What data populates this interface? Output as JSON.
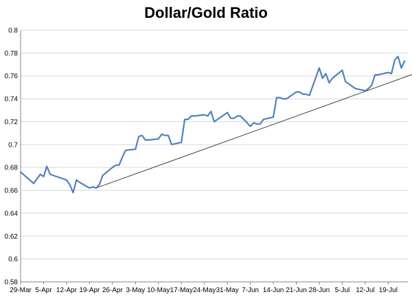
{
  "colors": {
    "series": "#4F81BD",
    "trend": "#404040",
    "grid": "#D9D9D9",
    "axis": "#868686"
  },
  "chart_data": {
    "type": "line",
    "title": "Dollar/Gold Ratio",
    "xlabel": "",
    "ylabel": "",
    "ylim": [
      0.58,
      0.8
    ],
    "y_ticks": [
      0.58,
      0.6,
      0.62,
      0.64,
      0.66,
      0.68,
      0.7,
      0.72,
      0.74,
      0.76,
      0.78,
      0.8
    ],
    "y_tick_labels": [
      "0.58",
      "0.6",
      "0.62",
      "0.64",
      "0.66",
      "0.68",
      "0.7",
      "0.72",
      "0.74",
      "0.76",
      "0.78",
      "0.8"
    ],
    "x_tick_labels": [
      "29-Mar",
      "5-Apr",
      "12-Apr",
      "19-Apr",
      "26-Apr",
      "3-May",
      "10-May",
      "17-May",
      "24-May",
      "31-May",
      "7-Jun",
      "14-Jun",
      "21-Jun",
      "28-Jun",
      "5-Jul",
      "12-Jul",
      "19-Jul"
    ],
    "x_day_range": [
      0,
      118
    ],
    "grid": "horizontal",
    "legend": "none",
    "series": [
      {
        "x_days": [
          0,
          4,
          6,
          7,
          8,
          9,
          10,
          14,
          15,
          16,
          17,
          18,
          21,
          22,
          23,
          24,
          25,
          28,
          29,
          30,
          31,
          32,
          35,
          36,
          37,
          38,
          39,
          42,
          43,
          44,
          45,
          46,
          49,
          50,
          51,
          52,
          53,
          56,
          57,
          58,
          59,
          60,
          63,
          64,
          65,
          66,
          67,
          70,
          71,
          72,
          73,
          74,
          77,
          78,
          79,
          80,
          81,
          84,
          85,
          86,
          87,
          88,
          91,
          92,
          93,
          94,
          95,
          98,
          99,
          100,
          101,
          102,
          105,
          106,
          107,
          108,
          109,
          112,
          113,
          114,
          115,
          116,
          117
        ],
        "values": [
          0.676,
          0.666,
          0.674,
          0.672,
          0.681,
          0.674,
          0.673,
          0.669,
          0.665,
          0.658,
          0.669,
          0.667,
          0.662,
          0.663,
          0.662,
          0.665,
          0.673,
          0.68,
          0.682,
          0.682,
          0.689,
          0.695,
          0.696,
          0.707,
          0.708,
          0.704,
          0.704,
          0.705,
          0.709,
          0.708,
          0.708,
          0.7,
          0.702,
          0.722,
          0.722,
          0.725,
          0.725,
          0.726,
          0.725,
          0.729,
          0.72,
          0.722,
          0.728,
          0.723,
          0.723,
          0.725,
          0.725,
          0.716,
          0.719,
          0.718,
          0.718,
          0.722,
          0.724,
          0.741,
          0.741,
          0.74,
          0.74,
          0.746,
          0.746,
          0.744,
          0.744,
          0.743,
          0.767,
          0.758,
          0.762,
          0.754,
          0.758,
          0.765,
          0.755,
          0.753,
          0.751,
          0.749,
          0.747,
          0.749,
          0.752,
          0.761,
          0.761,
          0.763,
          0.762,
          0.774,
          0.777,
          0.767,
          0.773
        ]
      }
    ],
    "trendline": {
      "x_days": [
        23,
        120
      ],
      "values": [
        0.662,
        0.762
      ]
    }
  }
}
